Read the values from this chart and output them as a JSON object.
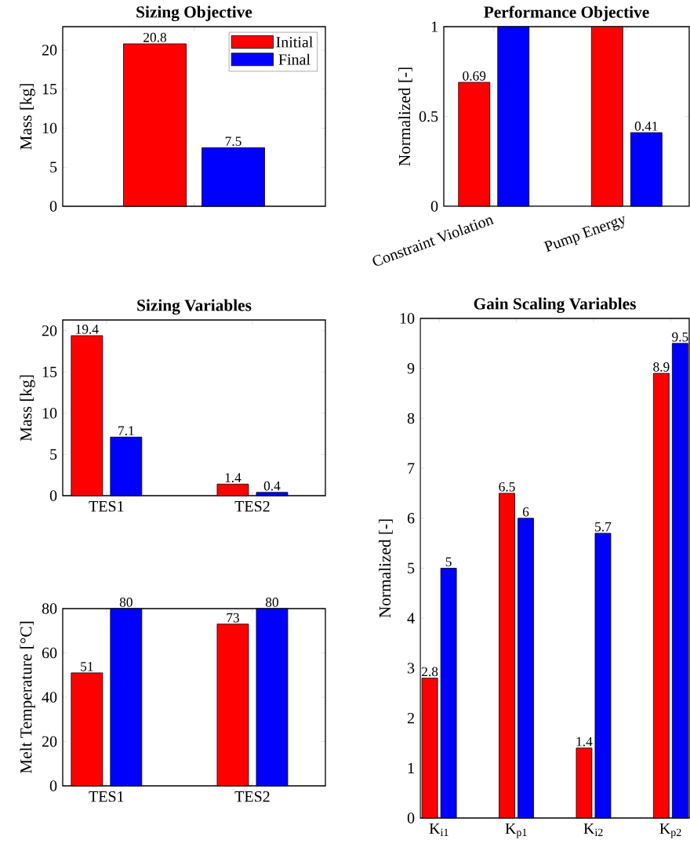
{
  "chart_data": [
    {
      "type": "bar",
      "title": "Sizing Objective",
      "ylabel": "Mass [kg]",
      "categories": [
        null
      ],
      "series": [
        {
          "name": "Initial",
          "color": "#ff0000",
          "values": [
            20.8
          ]
        },
        {
          "name": "Final",
          "color": "#0000ff",
          "values": [
            7.5
          ]
        }
      ],
      "ylim": [
        0,
        23
      ],
      "yticks": [
        0,
        5,
        10,
        15,
        20
      ],
      "data_labels": true,
      "legend": "top right"
    },
    {
      "type": "bar",
      "title": "Performance Objective",
      "ylabel": "Normalized [-]",
      "categories": [
        "Constraint Violation",
        "Pump Energy"
      ],
      "series": [
        {
          "color": "#ff0000",
          "values": [
            0.69,
            1
          ],
          "value_labels": [
            "0.69",
            null
          ]
        },
        {
          "color": "#0000ff",
          "values": [
            1,
            0.41
          ],
          "value_labels": [
            null,
            "0.41"
          ]
        }
      ],
      "ylim": [
        0,
        1
      ],
      "yticks": [
        0,
        0.5,
        1
      ]
    },
    {
      "type": "bar",
      "title": "Sizing Variables",
      "ylabel": "Mass [kg]",
      "categories": [
        "TES1",
        "TES2"
      ],
      "series": [
        {
          "color": "#ff0000",
          "values": [
            19.4,
            1.4
          ]
        },
        {
          "color": "#0000ff",
          "values": [
            7.1,
            0.4
          ]
        }
      ],
      "ylim": [
        0,
        21.3
      ],
      "yticks": [
        0,
        5,
        10,
        15,
        20
      ],
      "data_labels": true
    },
    {
      "type": "bar",
      "ylabel": "Melt Temperature [°C]",
      "categories": [
        "TES1",
        "TES2"
      ],
      "series": [
        {
          "color": "#ff0000",
          "values": [
            51,
            73
          ]
        },
        {
          "color": "#0000ff",
          "values": [
            80,
            80
          ]
        }
      ],
      "ylim": [
        0,
        80
      ],
      "yticks": [
        0,
        20,
        40,
        60,
        80
      ],
      "data_labels": true
    },
    {
      "type": "bar",
      "title": "Gain Scaling Variables",
      "ylabel": "Normalized [-]",
      "categories": [
        "K$_{i1}$",
        "K$_{p1}$",
        "K$_{i2}$",
        "K$_{p2}$"
      ],
      "series": [
        {
          "color": "#ff0000",
          "values": [
            2.8,
            6.5,
            1.4,
            8.9
          ]
        },
        {
          "color": "#0000ff",
          "values": [
            5,
            6,
            5.7,
            9.5
          ]
        }
      ],
      "ylim": [
        0,
        10
      ],
      "yticks": [
        0,
        1,
        2,
        3,
        4,
        5,
        6,
        7,
        8,
        9,
        10
      ],
      "data_labels": true
    }
  ]
}
